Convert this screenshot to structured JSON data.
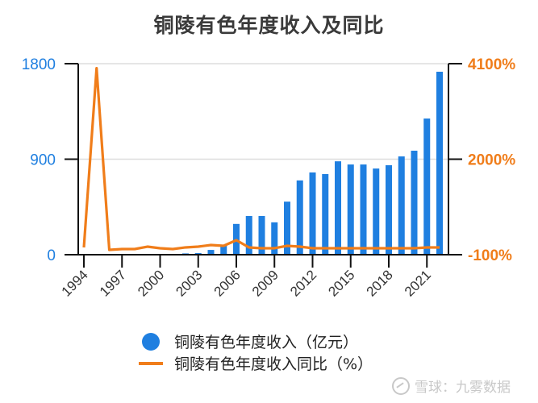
{
  "chart_data": {
    "type": "bar",
    "title": "铜陵有色年度收入及同比",
    "xlabel": "",
    "ylabel": "",
    "categories": [
      "1994",
      "1995",
      "1996",
      "1997",
      "1998",
      "1999",
      "2000",
      "2001",
      "2002",
      "2003",
      "2004",
      "2005",
      "2006",
      "2007",
      "2008",
      "2009",
      "2010",
      "2011",
      "2012",
      "2013",
      "2014",
      "2015",
      "2016",
      "2017",
      "2018",
      "2019",
      "2020",
      "2021",
      "2022"
    ],
    "x_tick_labels": [
      "1994",
      "1997",
      "2000",
      "2003",
      "2006",
      "2009",
      "2012",
      "2015",
      "2018",
      "2021"
    ],
    "series": [
      {
        "name": "铜陵有色年度收入（亿元）",
        "type": "bar",
        "axis": "left",
        "color": "#1f7fe0",
        "values": [
          null,
          null,
          null,
          null,
          null,
          null,
          null,
          null,
          12,
          15,
          45,
          85,
          290,
          365,
          365,
          305,
          500,
          700,
          775,
          760,
          880,
          850,
          850,
          812,
          843,
          926,
          980,
          1283,
          1724
        ]
      },
      {
        "name": "铜陵有色年度收入同比（%）",
        "type": "line",
        "axis": "right",
        "color": "#f07d1a",
        "values": [
          60,
          4000,
          6,
          24,
          24,
          77,
          42,
          24,
          60,
          77,
          113,
          95,
          219,
          60,
          42,
          42,
          95,
          77,
          42,
          42,
          42,
          42,
          42,
          42,
          42,
          42,
          42,
          60,
          60
        ]
      }
    ],
    "left_axis": {
      "ticks": [
        "0",
        "900",
        "1800"
      ],
      "ylim": [
        0,
        1800
      ],
      "color": "#1f7fe0"
    },
    "right_axis": {
      "ticks": [
        "-100%",
        "2000%",
        "4100%"
      ],
      "ylim": [
        -100,
        4100
      ],
      "color": "#f07d1a"
    },
    "grid": true,
    "legend_position": "bottom"
  },
  "legend": {
    "bar_label": "铜陵有色年度收入（亿元）",
    "line_label": "铜陵有色年度收入同比（%）"
  },
  "watermark": "雪球：九雾数据"
}
